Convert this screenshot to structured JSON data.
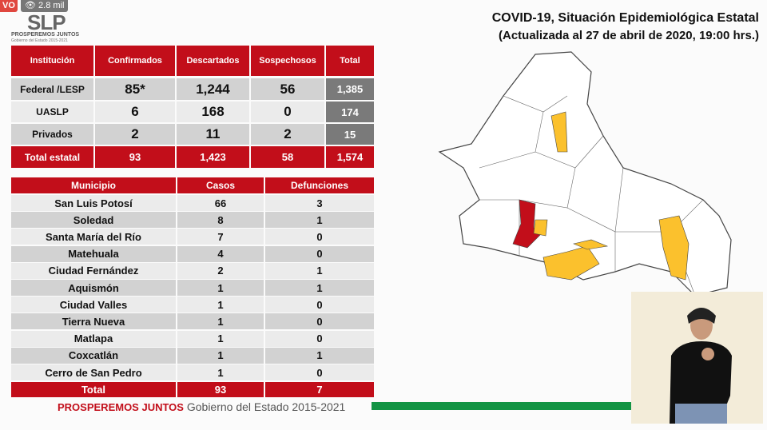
{
  "stream": {
    "live_label": "VO",
    "views": "2.8 mil"
  },
  "logo": {
    "text": "SLP",
    "tagline": "PROSPEREMOS JUNTOS",
    "subtitle": "Gobierno del Estado 2015-2021"
  },
  "title": {
    "line1": "COVID-19, Situación Epidemiológica Estatal",
    "line2": "(Actualizada al 27 de abril de 2020, 19:00 hrs.)"
  },
  "institutions": {
    "headers": [
      "Institución",
      "Confirmados",
      "Descartados",
      "Sospechosos",
      "Total"
    ],
    "rows": [
      [
        "Federal /LESP",
        "85*",
        "1,244",
        "56",
        "1,385"
      ],
      [
        "UASLP",
        "6",
        "168",
        "0",
        "174"
      ],
      [
        "Privados",
        "2",
        "11",
        "2",
        "15"
      ]
    ],
    "total": [
      "Total estatal",
      "93",
      "1,423",
      "58",
      "1,574"
    ]
  },
  "municipios": {
    "headers": [
      "Municipio",
      "Casos",
      "Defunciones"
    ],
    "rows": [
      [
        "San Luis Potosí",
        "66",
        "3"
      ],
      [
        "Soledad",
        "8",
        "1"
      ],
      [
        "Santa María del Río",
        "7",
        "0"
      ],
      [
        "Matehuala",
        "4",
        "0"
      ],
      [
        "Ciudad Fernández",
        "2",
        "1"
      ],
      [
        "Aquismón",
        "1",
        "1"
      ],
      [
        "Ciudad Valles",
        "1",
        "0"
      ],
      [
        "Tierra Nueva",
        "1",
        "0"
      ],
      [
        "Matlapa",
        "1",
        "0"
      ],
      [
        "Coxcatlán",
        "1",
        "1"
      ],
      [
        "Cerro de San Pedro",
        "1",
        "0"
      ]
    ],
    "total": [
      "Total",
      "93",
      "7"
    ]
  },
  "footer": {
    "brand": "PROSPEREMOS JUNTOS",
    "text": "Gobierno del Estado 2015-2021"
  },
  "colors": {
    "red": "#c20e1a",
    "green": "#139444",
    "map_highlight": "#fbc12d",
    "map_capital": "#c20e1a"
  }
}
